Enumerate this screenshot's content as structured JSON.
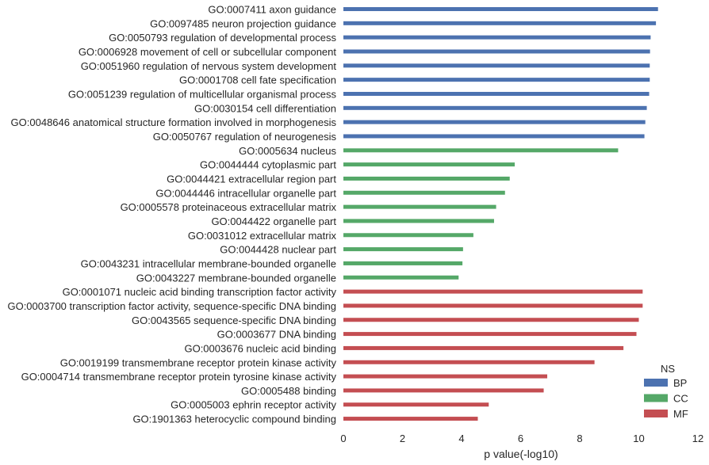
{
  "chart_data": {
    "type": "bar",
    "orientation": "horizontal",
    "xlabel": "p value(-log10)",
    "ylabel": "",
    "xlim": [
      0,
      12
    ],
    "xticks": [
      0,
      2,
      4,
      6,
      8,
      10,
      12
    ],
    "grid": false,
    "legend": {
      "title": "NS",
      "position": "bottom-right",
      "entries": [
        {
          "key": "BP",
          "label": "BP",
          "color": "#4c72b0"
        },
        {
          "key": "CC",
          "label": "CC",
          "color": "#55a868"
        },
        {
          "key": "MF",
          "label": "MF",
          "color": "#c44e52"
        }
      ]
    },
    "bars": [
      {
        "label": "GO:0007411 axon guidance",
        "value": 10.65,
        "ns": "BP"
      },
      {
        "label": "GO:0097485 neuron projection guidance",
        "value": 10.58,
        "ns": "BP"
      },
      {
        "label": "GO:0050793 regulation of developmental process",
        "value": 10.4,
        "ns": "BP"
      },
      {
        "label": "GO:0006928 movement of cell or subcellular component",
        "value": 10.38,
        "ns": "BP"
      },
      {
        "label": "GO:0051960 regulation of nervous system development",
        "value": 10.37,
        "ns": "BP"
      },
      {
        "label": "GO:0001708 cell fate specification",
        "value": 10.37,
        "ns": "BP"
      },
      {
        "label": "GO:0051239 regulation of multicellular organismal process",
        "value": 10.35,
        "ns": "BP"
      },
      {
        "label": "GO:0030154 cell differentiation",
        "value": 10.27,
        "ns": "BP"
      },
      {
        "label": "GO:0048646 anatomical structure formation involved in morphogenesis",
        "value": 10.22,
        "ns": "BP"
      },
      {
        "label": "GO:0050767 regulation of neurogenesis",
        "value": 10.19,
        "ns": "BP"
      },
      {
        "label": "GO:0005634 nucleus",
        "value": 9.3,
        "ns": "CC"
      },
      {
        "label": "GO:0044444 cytoplasmic part",
        "value": 5.8,
        "ns": "CC"
      },
      {
        "label": "GO:0044421 extracellular region part",
        "value": 5.63,
        "ns": "CC"
      },
      {
        "label": "GO:0044446 intracellular organelle part",
        "value": 5.47,
        "ns": "CC"
      },
      {
        "label": "GO:0005578 proteinaceous extracellular matrix",
        "value": 5.17,
        "ns": "CC"
      },
      {
        "label": "GO:0044422 organelle part",
        "value": 5.1,
        "ns": "CC"
      },
      {
        "label": "GO:0031012 extracellular matrix",
        "value": 4.4,
        "ns": "CC"
      },
      {
        "label": "GO:0044428 nuclear part",
        "value": 4.05,
        "ns": "CC"
      },
      {
        "label": "GO:0043231 intracellular membrane-bounded organelle",
        "value": 4.03,
        "ns": "CC"
      },
      {
        "label": "GO:0043227 membrane-bounded organelle",
        "value": 3.9,
        "ns": "CC"
      },
      {
        "label": "GO:0001071 nucleic acid binding transcription factor activity",
        "value": 10.13,
        "ns": "MF"
      },
      {
        "label": "GO:0003700 transcription factor activity, sequence-specific DNA binding",
        "value": 10.13,
        "ns": "MF"
      },
      {
        "label": "GO:0043565 sequence-specific DNA binding",
        "value": 10.0,
        "ns": "MF"
      },
      {
        "label": "GO:0003677 DNA binding",
        "value": 9.92,
        "ns": "MF"
      },
      {
        "label": "GO:0003676 nucleic acid binding",
        "value": 9.48,
        "ns": "MF"
      },
      {
        "label": "GO:0019199 transmembrane receptor protein kinase activity",
        "value": 8.5,
        "ns": "MF"
      },
      {
        "label": "GO:0004714 transmembrane receptor protein tyrosine kinase activity",
        "value": 6.9,
        "ns": "MF"
      },
      {
        "label": "GO:0005488 binding",
        "value": 6.78,
        "ns": "MF"
      },
      {
        "label": "GO:0005003 ephrin receptor activity",
        "value": 4.92,
        "ns": "MF"
      },
      {
        "label": "GO:1901363 heterocyclic compound binding",
        "value": 4.55,
        "ns": "MF"
      }
    ]
  }
}
